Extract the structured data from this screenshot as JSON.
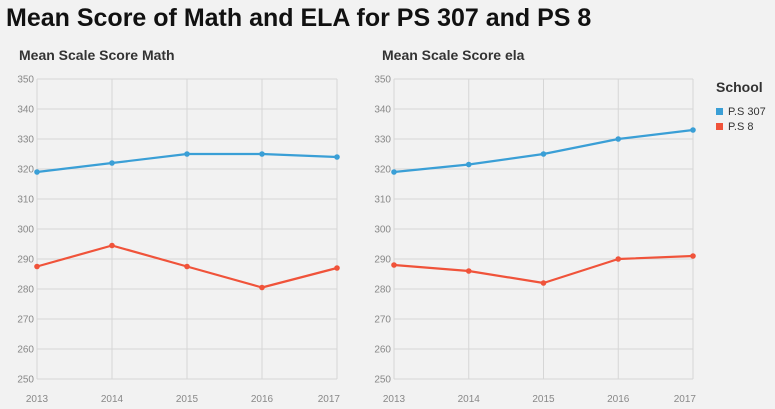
{
  "title": "Mean Score of Math and ELA for PS 307 and PS 8",
  "legend": {
    "title": "School",
    "items": [
      {
        "label": "P.S 307",
        "color": "#3a9fd6"
      },
      {
        "label": "P.S 8",
        "color": "#f0533a"
      }
    ]
  },
  "chart_data": [
    {
      "type": "line",
      "title": "Mean Scale Score Math",
      "x": [
        "2013",
        "2014",
        "2015",
        "2016",
        "2017"
      ],
      "ylim": [
        250,
        350
      ],
      "yticks": [
        250,
        260,
        270,
        280,
        290,
        300,
        310,
        320,
        330,
        340,
        350
      ],
      "grid": true,
      "series": [
        {
          "name": "P.S 307",
          "color": "#3a9fd6",
          "values": [
            319,
            322,
            325,
            325,
            324
          ]
        },
        {
          "name": "P.S 8",
          "color": "#f0533a",
          "values": [
            287.5,
            294.5,
            287.5,
            280.5,
            287
          ]
        }
      ]
    },
    {
      "type": "line",
      "title": "Mean Scale Score ela",
      "x": [
        "2013",
        "2014",
        "2015",
        "2016",
        "2017"
      ],
      "ylim": [
        250,
        350
      ],
      "yticks": [
        250,
        260,
        270,
        280,
        290,
        300,
        310,
        320,
        330,
        340,
        350
      ],
      "grid": true,
      "series": [
        {
          "name": "P.S 307",
          "color": "#3a9fd6",
          "values": [
            319,
            321.5,
            325,
            330,
            333
          ]
        },
        {
          "name": "P.S 8",
          "color": "#f0533a",
          "values": [
            288,
            286,
            282,
            290,
            291
          ]
        }
      ]
    }
  ]
}
